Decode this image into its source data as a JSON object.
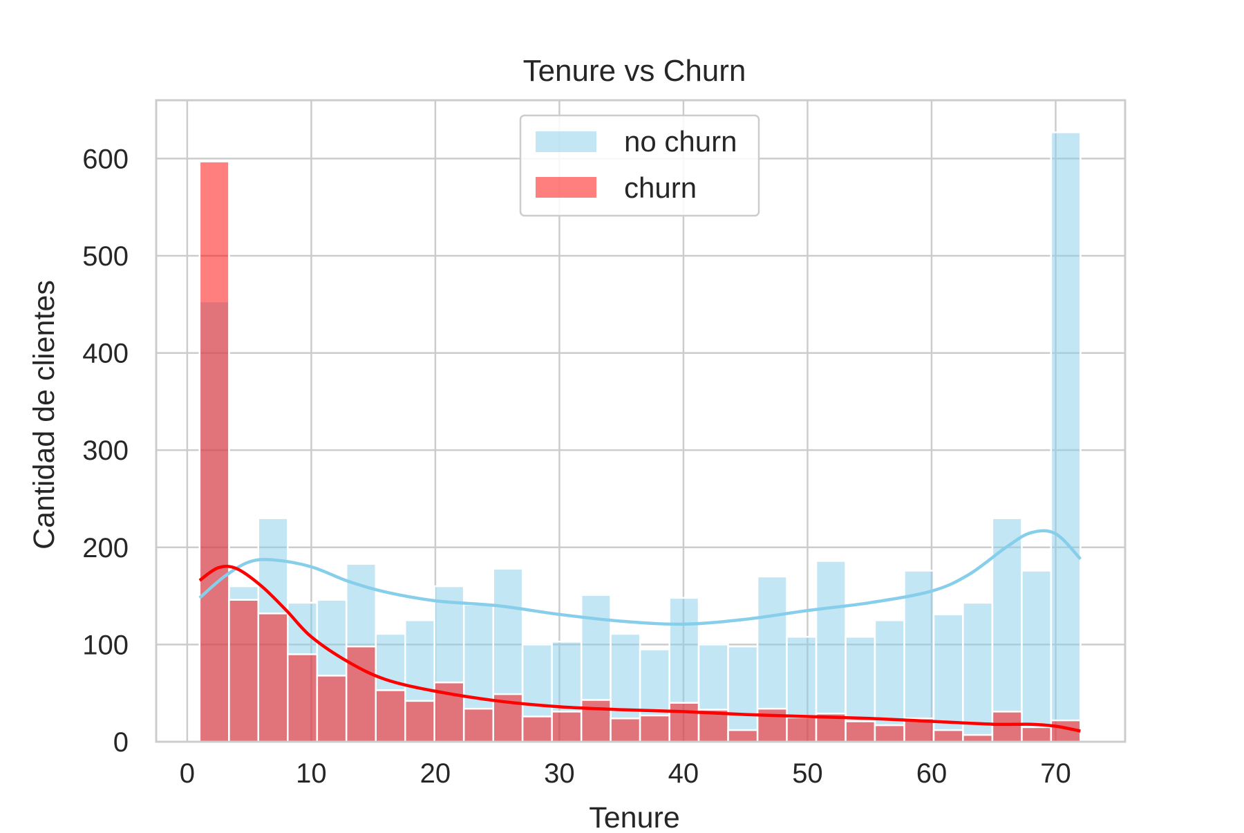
{
  "chart_data": {
    "type": "bar",
    "title": "Tenure vs Churn",
    "xlabel": "Tenure",
    "ylabel": "Cantidad de clientes",
    "xlim": [
      -2.5,
      75.6
    ],
    "ylim": [
      0,
      660
    ],
    "x_ticks": [
      0,
      10,
      20,
      30,
      40,
      50,
      60,
      70
    ],
    "y_ticks": [
      0,
      100,
      200,
      300,
      400,
      500,
      600
    ],
    "grid": true,
    "legend_position": "top-center",
    "bin_edges": [
      1.0,
      3.37,
      5.73,
      8.1,
      10.47,
      12.83,
      15.2,
      17.57,
      19.93,
      22.3,
      24.67,
      27.03,
      29.4,
      31.77,
      34.13,
      36.5,
      38.87,
      41.23,
      43.6,
      45.97,
      48.33,
      50.7,
      53.07,
      55.43,
      57.8,
      60.17,
      62.53,
      64.9,
      67.27,
      69.63,
      72.0
    ],
    "series": [
      {
        "name": "no churn",
        "color": "#87ceeb",
        "values": [
          453,
          160,
          230,
          143,
          146,
          183,
          111,
          125,
          160,
          141,
          178,
          100,
          103,
          151,
          111,
          95,
          148,
          100,
          98,
          170,
          108,
          186,
          108,
          125,
          176,
          131,
          143,
          230,
          176,
          627
        ],
        "kde": [
          [
            1,
            148
          ],
          [
            3,
            170
          ],
          [
            5,
            185
          ],
          [
            7,
            187
          ],
          [
            10,
            180
          ],
          [
            13,
            165
          ],
          [
            16,
            154
          ],
          [
            20,
            145
          ],
          [
            25,
            140
          ],
          [
            30,
            131
          ],
          [
            35,
            124
          ],
          [
            40,
            121
          ],
          [
            45,
            126
          ],
          [
            50,
            135
          ],
          [
            55,
            143
          ],
          [
            60,
            155
          ],
          [
            63,
            172
          ],
          [
            66,
            200
          ],
          [
            68,
            215
          ],
          [
            70,
            214
          ],
          [
            72,
            188
          ]
        ]
      },
      {
        "name": "churn",
        "color": "#ff0000",
        "values": [
          597,
          146,
          132,
          90,
          68,
          98,
          53,
          42,
          61,
          34,
          49,
          26,
          31,
          43,
          24,
          27,
          40,
          33,
          12,
          34,
          25,
          29,
          21,
          17,
          24,
          12,
          7,
          31,
          15,
          22
        ],
        "kde": [
          [
            1,
            166
          ],
          [
            2.5,
            179
          ],
          [
            4,
            178
          ],
          [
            6,
            160
          ],
          [
            8,
            135
          ],
          [
            10,
            108
          ],
          [
            13,
            82
          ],
          [
            16,
            64
          ],
          [
            20,
            52
          ],
          [
            25,
            42
          ],
          [
            30,
            36
          ],
          [
            35,
            33
          ],
          [
            40,
            31
          ],
          [
            45,
            28
          ],
          [
            50,
            26
          ],
          [
            55,
            24
          ],
          [
            60,
            21
          ],
          [
            65,
            18
          ],
          [
            68,
            18
          ],
          [
            70,
            16
          ],
          [
            72,
            11
          ]
        ]
      }
    ]
  }
}
